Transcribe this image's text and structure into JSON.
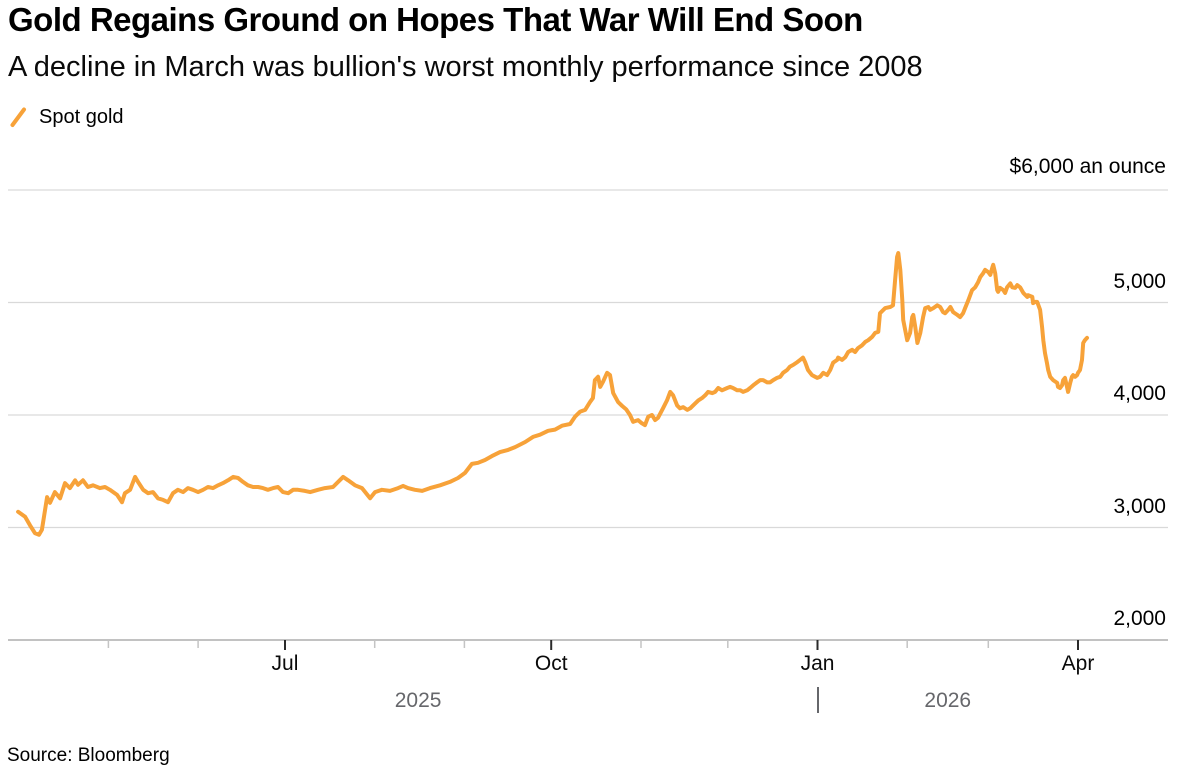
{
  "header": {
    "title": "Gold Regains Ground on Hopes That War Will End Soon",
    "subtitle": "A decline in March was bullion's worst monthly performance since 2008"
  },
  "legend": {
    "label": "Spot gold"
  },
  "source": "Source: Bloomberg",
  "colors": {
    "line": "#F7A239",
    "grid": "#D9D9D9",
    "axis": "#ADADAD",
    "major_tick": "#2B2B2B",
    "minor_tick": "#C4C4C4",
    "month_label": "#0A0A0A",
    "year_label": "#66676B",
    "text": "#000000"
  },
  "chart_data": {
    "type": "line",
    "title": "Gold Regains Ground on Hopes That War Will End Soon",
    "subtitle": "A decline in March was bullion's worst monthly performance since 2008",
    "legend_position": "top-left",
    "grid": "horizontal",
    "y_axis": {
      "unit_label": "$6,000 an ounce",
      "min": 2000,
      "max": 6000,
      "gridline_values": [
        6000,
        5000,
        4000,
        3000
      ],
      "ticks": [
        {
          "value": 5000,
          "label": "5,000"
        },
        {
          "value": 4000,
          "label": "4,000"
        },
        {
          "value": 3000,
          "label": "3,000"
        },
        {
          "value": 2000,
          "label": "2,000"
        }
      ]
    },
    "x_axis": {
      "domain_days": [
        -4.7,
        396.1
      ],
      "epoch": "days since Apr 1 2025",
      "major_ticks": [
        {
          "day": 91,
          "label": "Jul"
        },
        {
          "day": 183,
          "label": "Oct"
        },
        {
          "day": 275,
          "label": "Jan"
        },
        {
          "day": 365,
          "label": "Apr"
        }
      ],
      "minor_ticks": [
        30,
        61,
        122,
        153,
        214,
        244,
        306,
        334
      ],
      "year_labels": [
        {
          "label": "2025",
          "day": 137
        },
        {
          "label": "2026",
          "day": 320
        }
      ],
      "year_divider_day": 275
    },
    "series": [
      {
        "name": "Spot gold",
        "points": [
          [
            -1.2,
            3140
          ],
          [
            1.2,
            3095
          ],
          [
            2.9,
            3020
          ],
          [
            4.6,
            2950
          ],
          [
            6,
            2935
          ],
          [
            7,
            2980
          ],
          [
            8.8,
            3270
          ],
          [
            9.8,
            3220
          ],
          [
            11.5,
            3315
          ],
          [
            13.3,
            3260
          ],
          [
            15,
            3395
          ],
          [
            16.7,
            3350
          ],
          [
            18.5,
            3420
          ],
          [
            19.5,
            3380
          ],
          [
            21.2,
            3420
          ],
          [
            22.9,
            3360
          ],
          [
            24.7,
            3375
          ],
          [
            27.1,
            3350
          ],
          [
            28.8,
            3360
          ],
          [
            30.5,
            3335
          ],
          [
            33,
            3290
          ],
          [
            34.7,
            3225
          ],
          [
            35.7,
            3305
          ],
          [
            37.5,
            3335
          ],
          [
            39.2,
            3450
          ],
          [
            40.2,
            3405
          ],
          [
            42,
            3335
          ],
          [
            43.7,
            3305
          ],
          [
            45.4,
            3315
          ],
          [
            47.1,
            3260
          ],
          [
            48.9,
            3245
          ],
          [
            50.6,
            3225
          ],
          [
            52.3,
            3305
          ],
          [
            54,
            3335
          ],
          [
            55.8,
            3315
          ],
          [
            57.5,
            3350
          ],
          [
            59.2,
            3335
          ],
          [
            61,
            3315
          ],
          [
            62.7,
            3335
          ],
          [
            64.4,
            3360
          ],
          [
            66.1,
            3350
          ],
          [
            67.9,
            3375
          ],
          [
            69.6,
            3395
          ],
          [
            71.3,
            3420
          ],
          [
            73.1,
            3450
          ],
          [
            74.8,
            3440
          ],
          [
            76.5,
            3405
          ],
          [
            78.2,
            3375
          ],
          [
            80,
            3360
          ],
          [
            81.7,
            3360
          ],
          [
            83.4,
            3350
          ],
          [
            85.1,
            3335
          ],
          [
            86.9,
            3350
          ],
          [
            88.6,
            3360
          ],
          [
            90.3,
            3315
          ],
          [
            92.1,
            3305
          ],
          [
            93.8,
            3335
          ],
          [
            95.5,
            3335
          ],
          [
            97.9,
            3325
          ],
          [
            99.7,
            3315
          ],
          [
            102.4,
            3335
          ],
          [
            104.8,
            3350
          ],
          [
            107.6,
            3360
          ],
          [
            111.1,
            3450
          ],
          [
            112.8,
            3420
          ],
          [
            115.2,
            3375
          ],
          [
            117.6,
            3350
          ],
          [
            120.4,
            3260
          ],
          [
            122.1,
            3315
          ],
          [
            124.5,
            3335
          ],
          [
            127.3,
            3325
          ],
          [
            130.1,
            3350
          ],
          [
            131.8,
            3370
          ],
          [
            133.5,
            3350
          ],
          [
            135.9,
            3335
          ],
          [
            138.4,
            3325
          ],
          [
            141.1,
            3350
          ],
          [
            144.6,
            3375
          ],
          [
            148,
            3405
          ],
          [
            150.8,
            3440
          ],
          [
            153.2,
            3485
          ],
          [
            155.6,
            3565
          ],
          [
            157.7,
            3575
          ],
          [
            160.1,
            3600
          ],
          [
            162.5,
            3635
          ],
          [
            165.3,
            3670
          ],
          [
            168.1,
            3690
          ],
          [
            170.5,
            3715
          ],
          [
            174,
            3760
          ],
          [
            176.7,
            3805
          ],
          [
            179.1,
            3825
          ],
          [
            181.9,
            3860
          ],
          [
            184.3,
            3870
          ],
          [
            186.7,
            3905
          ],
          [
            189.5,
            3920
          ],
          [
            191.2,
            3985
          ],
          [
            193,
            4030
          ],
          [
            194.7,
            4045
          ],
          [
            196.4,
            4115
          ],
          [
            197.4,
            4150
          ],
          [
            198.1,
            4310
          ],
          [
            199.2,
            4340
          ],
          [
            199.9,
            4250
          ],
          [
            200.9,
            4295
          ],
          [
            202.3,
            4375
          ],
          [
            203.3,
            4355
          ],
          [
            204.4,
            4195
          ],
          [
            206.1,
            4115
          ],
          [
            207.5,
            4080
          ],
          [
            208.9,
            4050
          ],
          [
            210.2,
            4000
          ],
          [
            211.3,
            3940
          ],
          [
            213,
            3955
          ],
          [
            214.1,
            3930
          ],
          [
            215.4,
            3910
          ],
          [
            216.5,
            3985
          ],
          [
            217.8,
            4000
          ],
          [
            218.9,
            3955
          ],
          [
            219.9,
            3975
          ],
          [
            221.6,
            4060
          ],
          [
            223,
            4130
          ],
          [
            224.1,
            4205
          ],
          [
            225.1,
            4175
          ],
          [
            226.5,
            4085
          ],
          [
            227.5,
            4060
          ],
          [
            228.6,
            4070
          ],
          [
            230,
            4045
          ],
          [
            231,
            4060
          ],
          [
            232,
            4085
          ],
          [
            233.8,
            4130
          ],
          [
            235.1,
            4150
          ],
          [
            236.2,
            4175
          ],
          [
            237.2,
            4205
          ],
          [
            238.6,
            4195
          ],
          [
            239.6,
            4205
          ],
          [
            240.7,
            4240
          ],
          [
            242,
            4220
          ],
          [
            243.8,
            4240
          ],
          [
            244.8,
            4250
          ],
          [
            245.8,
            4240
          ],
          [
            247.2,
            4220
          ],
          [
            248.3,
            4220
          ],
          [
            249.3,
            4205
          ],
          [
            250.7,
            4220
          ],
          [
            251.7,
            4240
          ],
          [
            252.8,
            4265
          ],
          [
            254.1,
            4290
          ],
          [
            255.2,
            4310
          ],
          [
            256.2,
            4310
          ],
          [
            257.6,
            4290
          ],
          [
            258.6,
            4290
          ],
          [
            259.7,
            4310
          ],
          [
            261,
            4330
          ],
          [
            262.1,
            4340
          ],
          [
            263.1,
            4375
          ],
          [
            264.5,
            4400
          ],
          [
            265.5,
            4430
          ],
          [
            266.6,
            4445
          ],
          [
            268,
            4470
          ],
          [
            269,
            4490
          ],
          [
            270,
            4510
          ],
          [
            270.7,
            4470
          ],
          [
            271.7,
            4400
          ],
          [
            273.1,
            4355
          ],
          [
            274.2,
            4340
          ],
          [
            274.9,
            4330
          ],
          [
            275.9,
            4340
          ],
          [
            277,
            4375
          ],
          [
            278.3,
            4355
          ],
          [
            279.4,
            4400
          ],
          [
            280.4,
            4465
          ],
          [
            281.8,
            4490
          ],
          [
            282.1,
            4510
          ],
          [
            283.5,
            4490
          ],
          [
            284.6,
            4515
          ],
          [
            285.6,
            4560
          ],
          [
            287,
            4580
          ],
          [
            288,
            4560
          ],
          [
            289,
            4595
          ],
          [
            290.4,
            4620
          ],
          [
            291.5,
            4650
          ],
          [
            292.5,
            4665
          ],
          [
            293.9,
            4695
          ],
          [
            294.9,
            4730
          ],
          [
            296,
            4740
          ],
          [
            296.6,
            4905
          ],
          [
            298.4,
            4950
          ],
          [
            300.1,
            4960
          ],
          [
            301.1,
            4975
          ],
          [
            301.8,
            5200
          ],
          [
            302.5,
            5405
          ],
          [
            302.9,
            5440
          ],
          [
            303.6,
            5290
          ],
          [
            304.3,
            5020
          ],
          [
            304.6,
            4845
          ],
          [
            305.3,
            4755
          ],
          [
            306,
            4665
          ],
          [
            307,
            4730
          ],
          [
            307.7,
            4870
          ],
          [
            308.1,
            4890
          ],
          [
            308.8,
            4780
          ],
          [
            309.5,
            4640
          ],
          [
            310.5,
            4730
          ],
          [
            311.5,
            4870
          ],
          [
            312.2,
            4950
          ],
          [
            313.3,
            4960
          ],
          [
            313.9,
            4935
          ],
          [
            315,
            4950
          ],
          [
            316.4,
            4975
          ],
          [
            317.4,
            4960
          ],
          [
            318.4,
            4915
          ],
          [
            319.1,
            4905
          ],
          [
            320.2,
            4935
          ],
          [
            320.9,
            4960
          ],
          [
            321.9,
            4915
          ],
          [
            323.3,
            4890
          ],
          [
            324.3,
            4870
          ],
          [
            325.3,
            4905
          ],
          [
            326,
            4950
          ],
          [
            327.1,
            5020
          ],
          [
            328.4,
            5110
          ],
          [
            329.5,
            5135
          ],
          [
            330.5,
            5180
          ],
          [
            331.2,
            5225
          ],
          [
            332.2,
            5260
          ],
          [
            332.9,
            5290
          ],
          [
            334,
            5270
          ],
          [
            334.7,
            5245
          ],
          [
            335.4,
            5310
          ],
          [
            335.7,
            5335
          ],
          [
            336.4,
            5260
          ],
          [
            337.1,
            5110
          ],
          [
            337.4,
            5095
          ],
          [
            338.1,
            5130
          ],
          [
            339.2,
            5110
          ],
          [
            339.8,
            5085
          ],
          [
            340.5,
            5135
          ],
          [
            341.6,
            5170
          ],
          [
            342.3,
            5135
          ],
          [
            343.3,
            5130
          ],
          [
            344,
            5155
          ],
          [
            345,
            5135
          ],
          [
            346.1,
            5085
          ],
          [
            347.5,
            5050
          ],
          [
            347.8,
            5065
          ],
          [
            349.2,
            5050
          ],
          [
            349.5,
            4995
          ],
          [
            350.2,
            5005
          ],
          [
            350.9,
            5005
          ],
          [
            351.9,
            4935
          ],
          [
            352.6,
            4780
          ],
          [
            353,
            4665
          ],
          [
            353.6,
            4550
          ],
          [
            354.3,
            4460
          ],
          [
            354.7,
            4400
          ],
          [
            355.4,
            4340
          ],
          [
            356.4,
            4310
          ],
          [
            357.8,
            4285
          ],
          [
            358.1,
            4250
          ],
          [
            358.8,
            4240
          ],
          [
            359.5,
            4265
          ],
          [
            359.9,
            4310
          ],
          [
            360.5,
            4330
          ],
          [
            361.2,
            4250
          ],
          [
            361.6,
            4205
          ],
          [
            362.3,
            4285
          ],
          [
            362.9,
            4340
          ],
          [
            363.3,
            4355
          ],
          [
            364,
            4340
          ],
          [
            364.7,
            4355
          ],
          [
            365,
            4375
          ],
          [
            365.7,
            4400
          ],
          [
            366.4,
            4490
          ],
          [
            366.8,
            4640
          ],
          [
            367.4,
            4665
          ],
          [
            368.1,
            4685
          ]
        ]
      }
    ]
  }
}
